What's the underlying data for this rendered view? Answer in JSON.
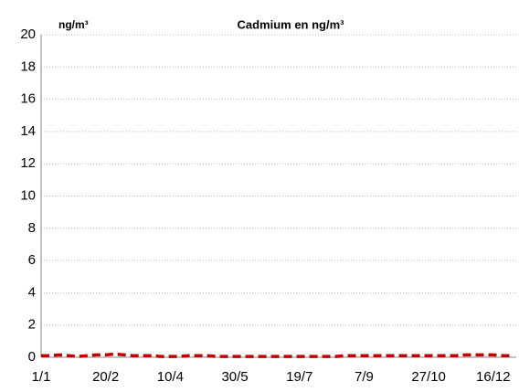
{
  "chart_data": {
    "type": "line",
    "title": "Cadmium en ng/m³",
    "y_unit": "ng/m³",
    "categories": [
      "1/1",
      null,
      null,
      null,
      null,
      null,
      null,
      "20/2",
      null,
      null,
      null,
      null,
      null,
      null,
      "10/4",
      null,
      null,
      null,
      null,
      null,
      null,
      "30/5",
      null,
      null,
      null,
      null,
      null,
      null,
      "19/7",
      null,
      null,
      null,
      null,
      null,
      null,
      "7/9",
      null,
      null,
      null,
      null,
      null,
      null,
      "27/10",
      null,
      null,
      null,
      null,
      null,
      null,
      "16/12",
      null,
      null
    ],
    "series": [
      {
        "name": "Cadmium",
        "color": "#c00000",
        "values": [
          0.1,
          0.1,
          0.15,
          0.1,
          0.05,
          0.1,
          0.15,
          0.15,
          0.2,
          0.15,
          0.1,
          0.1,
          0.1,
          0.05,
          0.05,
          0.05,
          0.1,
          0.1,
          0.1,
          0.05,
          0.05,
          0.05,
          0.05,
          0.05,
          0.05,
          0.05,
          0.05,
          0.05,
          0.05,
          0.05,
          0.05,
          0.05,
          0.05,
          0.1,
          0.1,
          0.1,
          0.1,
          0.1,
          0.1,
          0.1,
          0.1,
          0.1,
          0.1,
          0.1,
          0.1,
          0.1,
          0.15,
          0.15,
          0.15,
          0.15,
          0.1,
          0.1
        ]
      }
    ],
    "ylim": [
      0,
      20
    ],
    "yticks": [
      0,
      2,
      4,
      6,
      8,
      10,
      12,
      14,
      16,
      18,
      20
    ],
    "grid": true
  }
}
